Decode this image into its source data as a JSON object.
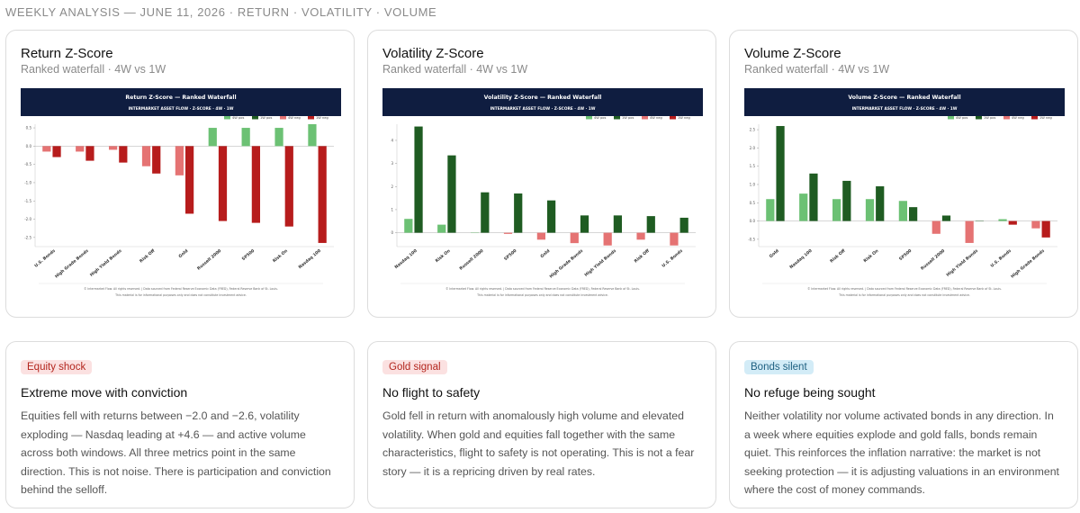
{
  "header": {
    "text": "WEEKLY ANALYSIS — JUNE 11, 2026 · RETURN · VOLATILITY · VOLUME"
  },
  "colors": {
    "fourW_pos": "#6cc174",
    "oneW_pos": "#1f5c22",
    "fourW_neg": "#e57373",
    "oneW_neg": "#b71c1c",
    "banner": "#0f1d40"
  },
  "cards": [
    {
      "title": "Return Z-Score",
      "subtitle": "Ranked waterfall · 4W vs 1W",
      "chart_data": {
        "type": "bar",
        "banner_title": "Return Z-Score — Ranked Waterfall",
        "banner_subtitle": "INTERMARKET ASSET FLOW · Z-SCORE · 4W · 1W",
        "legend": [
          "4W pos",
          "1W pos",
          "4W neg",
          "1W neg"
        ],
        "legend_position": "top-right",
        "categories": [
          "U.S. Bonds",
          "High Grade Bonds",
          "High Yield Bonds",
          "Risk Off",
          "Gold",
          "Russell 2000",
          "SP500",
          "Risk On",
          "Nasdaq 100"
        ],
        "series": [
          {
            "name": "4W",
            "values": [
              -0.15,
              -0.15,
              -0.1,
              -0.55,
              -0.8,
              0.5,
              0.5,
              0.5,
              0.6
            ]
          },
          {
            "name": "1W",
            "values": [
              -0.3,
              -0.4,
              -0.45,
              -0.75,
              -1.85,
              -2.05,
              -2.1,
              -2.2,
              -2.65
            ]
          }
        ],
        "ylim": [
          -2.75,
          0.6
        ],
        "yticks": [
          0.5,
          0.0,
          -0.5,
          -1.0,
          -1.5,
          -2.0,
          -2.5
        ],
        "footer_1": "© Intermarket Flow. All rights reserved. | Data sourced from Federal Reserve Economic Data (FRED), Federal Reserve Bank of St. Louis.",
        "footer_2": "This material is for informational purposes only and does not constitute investment advice."
      }
    },
    {
      "title": "Volatility Z-Score",
      "subtitle": "Ranked waterfall · 4W vs 1W",
      "chart_data": {
        "type": "bar",
        "banner_title": "Volatility Z-Score — Ranked Waterfall",
        "banner_subtitle": "INTERMARKET ASSET FLOW · Z-SCORE · 4W · 1W",
        "legend": [
          "4W pos",
          "1W pos",
          "4W neg",
          "1W neg"
        ],
        "legend_position": "top-right",
        "categories": [
          "Nasdaq 100",
          "Risk On",
          "Russell 2000",
          "SP500",
          "Gold",
          "High Grade Bonds",
          "High Yield Bonds",
          "Risk Off",
          "U.S. Bonds"
        ],
        "series": [
          {
            "name": "4W",
            "values": [
              0.6,
              0.35,
              0.0,
              -0.05,
              -0.3,
              -0.45,
              -0.55,
              -0.3,
              -0.55
            ]
          },
          {
            "name": "1W",
            "values": [
              4.6,
              3.35,
              1.75,
              1.7,
              1.4,
              0.75,
              0.75,
              0.72,
              0.65
            ]
          }
        ],
        "ylim": [
          -0.6,
          4.7
        ],
        "yticks": [
          4,
          3,
          2,
          1,
          0
        ],
        "footer_1": "© Intermarket Flow. All rights reserved. | Data sourced from Federal Reserve Economic Data (FRED), Federal Reserve Bank of St. Louis.",
        "footer_2": "This material is for informational purposes only and does not constitute investment advice."
      }
    },
    {
      "title": "Volume Z-Score",
      "subtitle": "Ranked waterfall · 4W vs 1W",
      "chart_data": {
        "type": "bar",
        "banner_title": "Volume Z-Score — Ranked Waterfall",
        "banner_subtitle": "INTERMARKET ASSET FLOW · Z-SCORE · 4W · 1W",
        "legend": [
          "4W pos",
          "1W pos",
          "4W neg",
          "1W neg"
        ],
        "legend_position": "top-right",
        "categories": [
          "Gold",
          "Nasdaq 100",
          "Risk Off",
          "Risk On",
          "SP500",
          "Russell 2000",
          "High Yield Bonds",
          "U.S. Bonds",
          "High Grade Bonds"
        ],
        "series": [
          {
            "name": "4W",
            "values": [
              0.6,
              0.75,
              0.6,
              0.6,
              0.55,
              -0.35,
              -0.6,
              0.05,
              -0.2
            ]
          },
          {
            "name": "1W",
            "values": [
              2.6,
              1.3,
              1.1,
              0.95,
              0.38,
              0.15,
              0.0,
              -0.1,
              -0.45
            ]
          }
        ],
        "ylim": [
          -0.7,
          2.65
        ],
        "yticks": [
          2.5,
          2.0,
          1.5,
          1.0,
          0.5,
          0.0,
          -0.5
        ],
        "footer_1": "© Intermarket Flow. All rights reserved. | Data sourced from Federal Reserve Economic Data (FRED), Federal Reserve Bank of St. Louis.",
        "footer_2": "This material is for informational purposes only and does not constitute investment advice."
      }
    }
  ],
  "notes": [
    {
      "badge": "Equity shock",
      "title": "Extreme move with conviction",
      "body": "Equities fell with returns between −2.0 and −2.6, volatility exploding — Nasdaq leading at +4.6 — and active volume across both windows. All three metrics point in the same direction. This is not noise. There is participation and conviction behind the selloff."
    },
    {
      "badge": "Gold signal",
      "title": "No flight to safety",
      "body": "Gold fell in return with anomalously high volume and elevated volatility. When gold and equities fall together with the same characteristics, flight to safety is not operating. This is not a fear story — it is a repricing driven by real rates."
    },
    {
      "badge": "Bonds silent",
      "title": "No refuge being sought",
      "body": "Neither volatility nor volume activated bonds in any direction. In a week where equities explode and gold falls, bonds remain quiet. This reinforces the inflation narrative: the market is not seeking protection — it is adjusting valuations in an environment where the cost of money commands."
    }
  ]
}
